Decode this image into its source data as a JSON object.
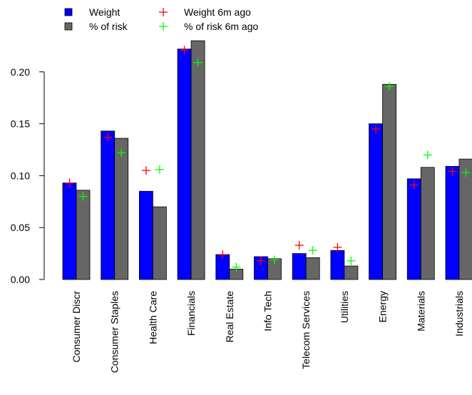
{
  "chart_data": {
    "type": "bar",
    "title": "",
    "xlabel": "",
    "ylabel": "",
    "ylim": [
      0,
      0.235
    ],
    "yticks": [
      "0.00",
      "0.05",
      "0.10",
      "0.15",
      "0.20"
    ],
    "legend_position": "top-left",
    "categories": [
      "Consumer Discr",
      "Consumer Staples",
      "Health Care",
      "Financials",
      "Real Estate",
      "Info Tech",
      "Telecom Services",
      "Utilities",
      "Energy",
      "Materials",
      "Industrials"
    ],
    "series": [
      {
        "name": "Weight",
        "kind": "bar",
        "color": "#0000ff",
        "values": [
          0.093,
          0.143,
          0.085,
          0.222,
          0.024,
          0.022,
          0.025,
          0.028,
          0.15,
          0.097,
          0.109
        ]
      },
      {
        "name": "% of risk",
        "kind": "bar",
        "color": "#666666",
        "values": [
          0.086,
          0.136,
          0.07,
          0.23,
          0.01,
          0.02,
          0.021,
          0.013,
          0.188,
          0.108,
          0.116
        ]
      },
      {
        "name": "Weight 6m ago",
        "kind": "marker",
        "color": "#ff0000",
        "values": [
          0.093,
          0.137,
          0.105,
          0.221,
          0.024,
          0.018,
          0.033,
          0.031,
          0.145,
          0.091,
          0.104
        ]
      },
      {
        "name": "% of risk 6m ago",
        "kind": "marker",
        "color": "#00ff00",
        "values": [
          0.08,
          0.122,
          0.106,
          0.209,
          0.012,
          0.019,
          0.028,
          0.018,
          0.186,
          0.12,
          0.103
        ]
      }
    ]
  }
}
